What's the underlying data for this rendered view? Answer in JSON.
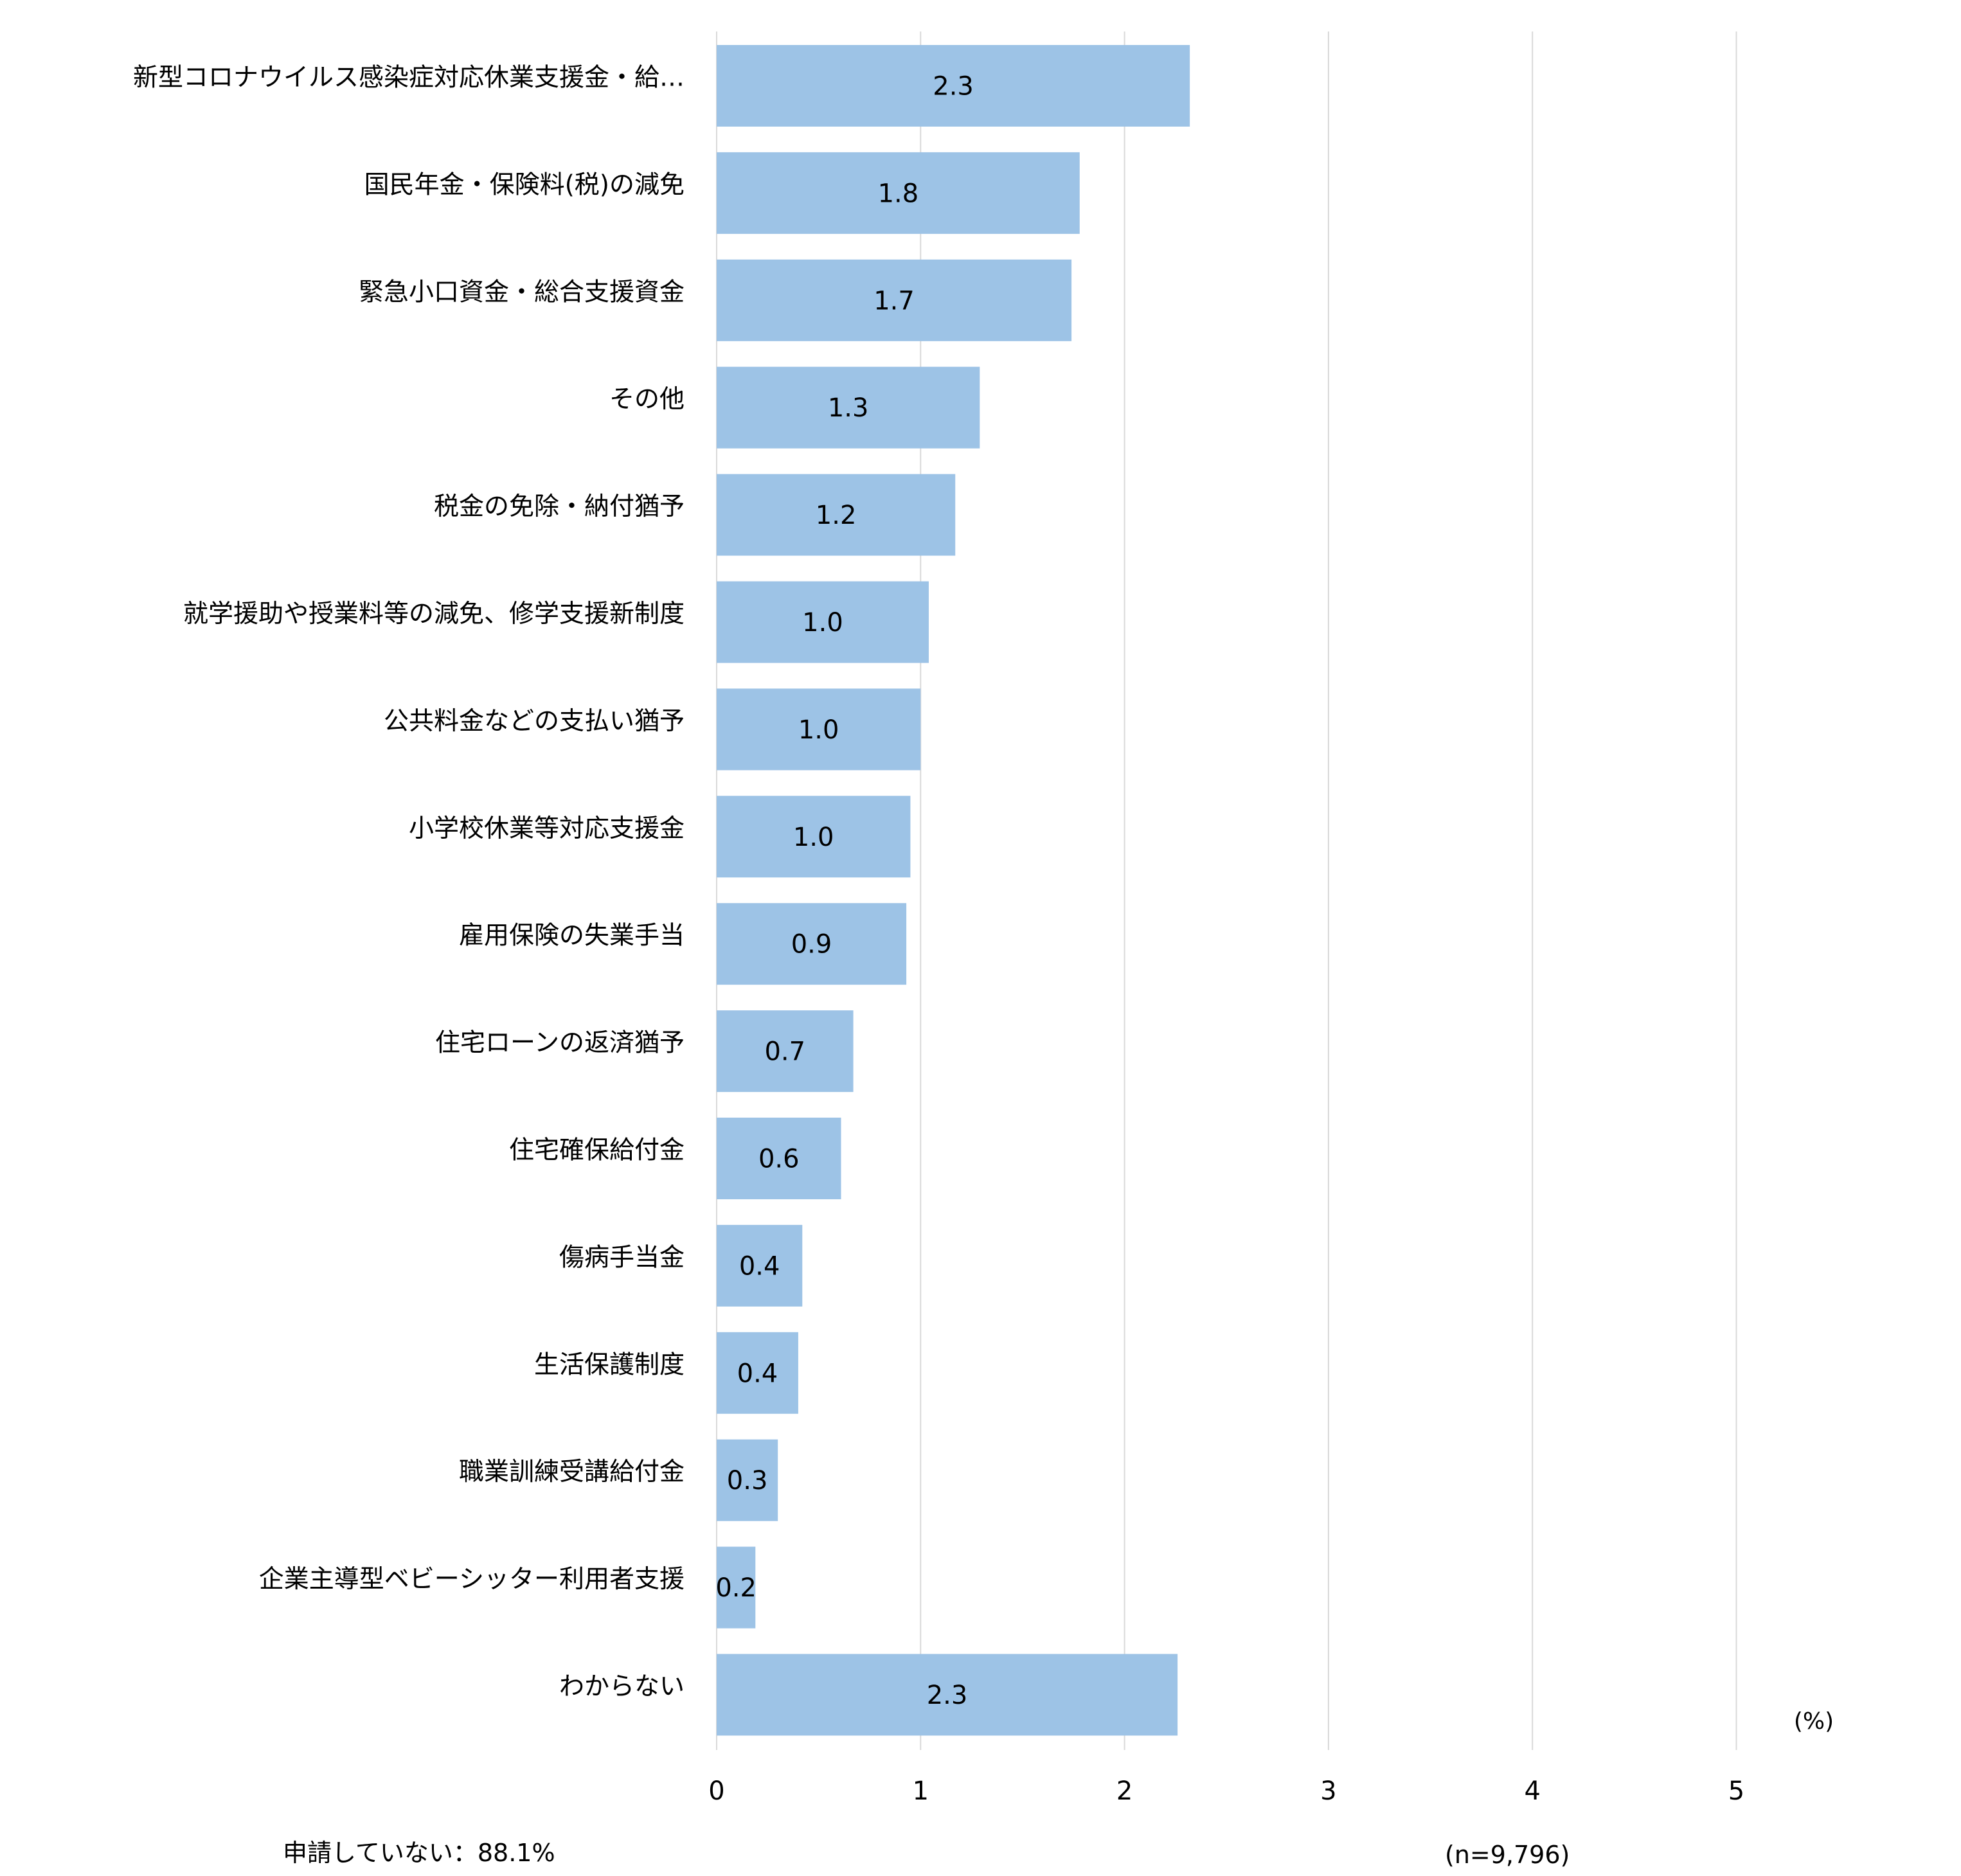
{
  "chart_data": {
    "type": "bar",
    "orientation": "horizontal",
    "categories": [
      "新型コロナウイルス感染症対応休業支援金・給…",
      "国民年金・保険料(税)の減免",
      "緊急小口資金・総合支援資金",
      "その他",
      "税金の免除・納付猶予",
      "就学援助や授業料等の減免、修学支援新制度",
      "公共料金などの支払い猶予",
      "小学校休業等対応支援金",
      "雇用保険の失業手当",
      "住宅ローンの返済猶予",
      "住宅確保給付金",
      "傷病手当金",
      "生活保護制度",
      "職業訓練受講給付金",
      "企業主導型ベビーシッター利用者支援",
      "わからない"
    ],
    "values": [
      2.32,
      1.78,
      1.74,
      1.29,
      1.17,
      1.04,
      1.0,
      0.95,
      0.93,
      0.67,
      0.61,
      0.42,
      0.4,
      0.3,
      0.19,
      2.26
    ],
    "data_labels": [
      "2.3",
      "1.8",
      "1.7",
      "1.3",
      "1.2",
      "1.0",
      "1.0",
      "1.0",
      "0.9",
      "0.7",
      "0.6",
      "0.4",
      "0.4",
      "0.3",
      "0.2",
      "2.3"
    ],
    "xlim": [
      0,
      5
    ],
    "xticks": [
      "0",
      "1",
      "2",
      "3",
      "4",
      "5"
    ],
    "unit_label": "(%)",
    "grid": true,
    "bar_color": "#9DC3E6",
    "grid_color": "#D9D9D9"
  },
  "notes": {
    "not_applied": "申請していない：88.1%",
    "sample_size": "(n=9,796)"
  }
}
